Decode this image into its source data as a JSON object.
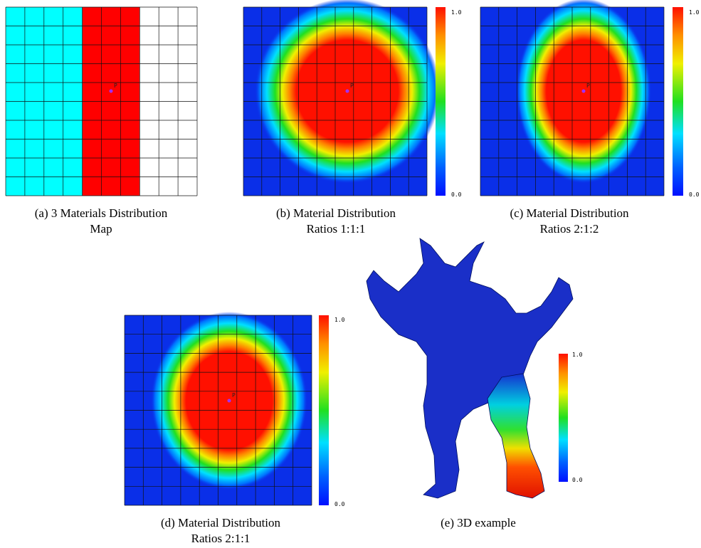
{
  "panels": [
    {
      "caption": [
        "(a) 3 Materials Distribution",
        "Map"
      ],
      "point_label": "P"
    },
    {
      "caption": [
        "(b) Material Distribution",
        "Ratios 1:1:1"
      ],
      "point_label": "P",
      "colorbar": {
        "max": "1.0",
        "min": "0.0"
      }
    },
    {
      "caption": [
        "(c) Material Distribution",
        "Ratios 2:1:2"
      ],
      "point_label": "P",
      "colorbar": {
        "max": "1.0",
        "min": "0.0"
      }
    },
    {
      "caption": [
        "(d) Material Distribution",
        "Ratios 2:1:1"
      ],
      "point_label": "P",
      "colorbar": {
        "max": "1.0",
        "min": "0.0"
      }
    },
    {
      "caption": [
        "(e) 3D example"
      ],
      "colorbar": {
        "max": "1.0",
        "min": "0.0"
      }
    }
  ]
}
